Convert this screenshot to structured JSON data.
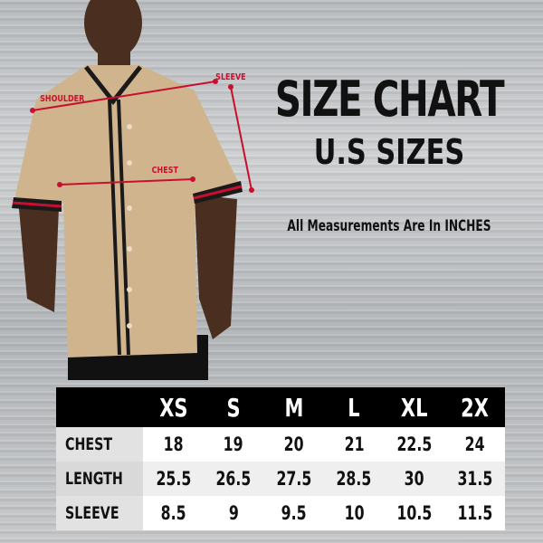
{
  "title": "SIZE CHART",
  "subtitle": "U.S SIZES",
  "note": "All Measurements Are In INCHES",
  "annotations": {
    "shoulder": "SHOULDER",
    "sleeve": "SLEEVE",
    "chest": "CHEST"
  },
  "colors": {
    "shirt": "#cfb48e",
    "trim": "#1a1a1a",
    "accent": "#c8102e"
  },
  "table": {
    "headers": [
      "",
      "XS",
      "S",
      "M",
      "L",
      "XL",
      "2X"
    ],
    "rows": [
      {
        "label": "CHEST",
        "values": [
          "18",
          "19",
          "20",
          "21",
          "22.5",
          "24"
        ]
      },
      {
        "label": "LENGTH",
        "values": [
          "25.5",
          "26.5",
          "27.5",
          "28.5",
          "30",
          "31.5"
        ]
      },
      {
        "label": "SLEEVE",
        "values": [
          "8.5",
          "9",
          "9.5",
          "10",
          "10.5",
          "11.5"
        ]
      }
    ]
  }
}
